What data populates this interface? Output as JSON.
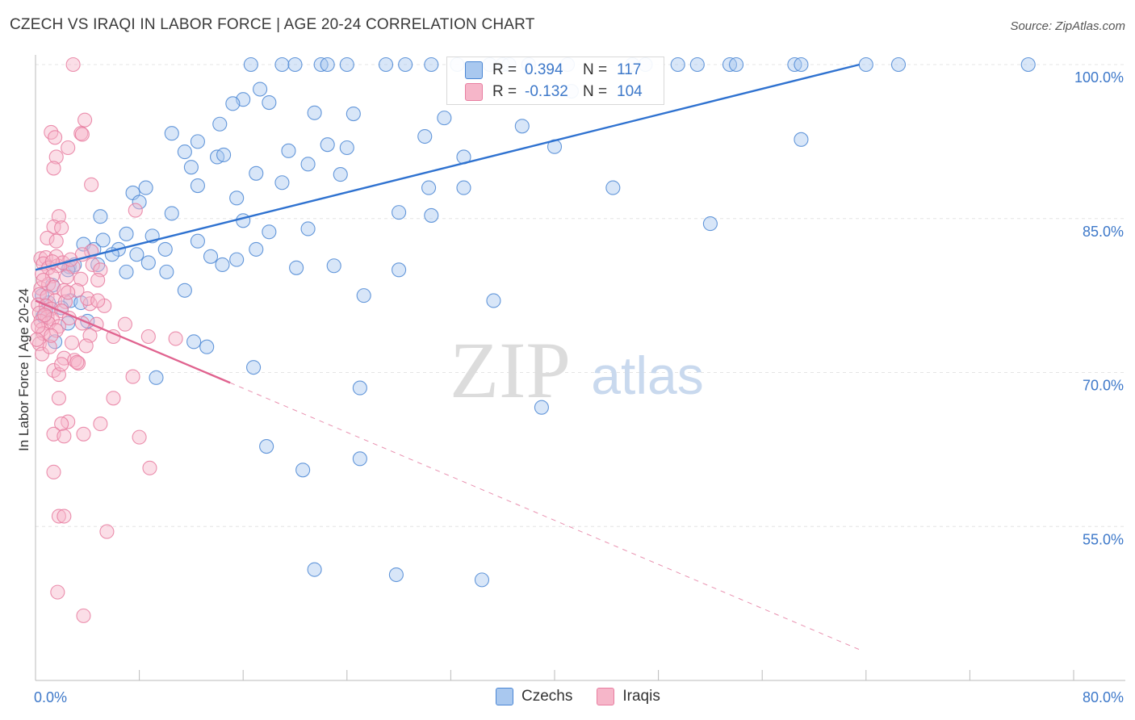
{
  "title": "CZECH VS IRAQI IN LABOR FORCE | AGE 20-24 CORRELATION CHART",
  "source": "Source: ZipAtlas.com",
  "watermark": {
    "zip": "ZIP",
    "atlas": "atlas"
  },
  "legend": {
    "r_label": "R =",
    "n_label": "N =",
    "series": [
      {
        "name": "Czechs",
        "r": "0.394",
        "n": "117",
        "fill": "#a9c8ef",
        "stroke": "#4a86d4",
        "line": "#2f72d0"
      },
      {
        "name": "Iraqis",
        "r": "-0.132",
        "n": "104",
        "fill": "#f6b6c9",
        "stroke": "#e87da0",
        "line": "#e0638f"
      }
    ]
  },
  "chart_data": {
    "type": "scatter",
    "xlabel": "",
    "ylabel": "In Labor Force | Age 20-24",
    "xlim": [
      0,
      80
    ],
    "ylim": [
      40,
      100
    ],
    "x_tick_labels": [
      {
        "value": 0,
        "label": "0.0%"
      },
      {
        "value": 80,
        "label": "80.0%"
      }
    ],
    "y_tick_labels": [
      {
        "value": 100,
        "label": "100.0%"
      },
      {
        "value": 85,
        "label": "85.0%"
      },
      {
        "value": 70,
        "label": "70.0%"
      },
      {
        "value": 55,
        "label": "55.0%"
      }
    ],
    "grid": true,
    "series": [
      {
        "name": "Czechs",
        "trend": {
          "x": [
            0,
            63.5
          ],
          "y": [
            80,
            100
          ],
          "dashed_after": null
        },
        "points": [
          [
            16.6,
            100
          ],
          [
            19.0,
            100
          ],
          [
            20.0,
            100
          ],
          [
            22.0,
            100
          ],
          [
            22.5,
            100
          ],
          [
            24.0,
            100
          ],
          [
            27.0,
            100
          ],
          [
            28.5,
            100
          ],
          [
            30.5,
            100
          ],
          [
            32.5,
            100
          ],
          [
            35.0,
            100
          ],
          [
            36.0,
            100
          ],
          [
            36.5,
            100
          ],
          [
            38.0,
            100
          ],
          [
            41.0,
            100
          ],
          [
            46.0,
            100
          ],
          [
            47.0,
            100
          ],
          [
            49.5,
            100
          ],
          [
            51.0,
            100
          ],
          [
            53.5,
            100
          ],
          [
            54.0,
            100
          ],
          [
            58.5,
            100
          ],
          [
            59.0,
            100
          ],
          [
            64.0,
            100
          ],
          [
            66.5,
            100
          ],
          [
            76.5,
            100
          ],
          [
            17.3,
            97.6
          ],
          [
            16.0,
            96.6
          ],
          [
            15.2,
            96.2
          ],
          [
            18.0,
            96.3
          ],
          [
            14.2,
            94.2
          ],
          [
            21.5,
            95.3
          ],
          [
            24.5,
            95.2
          ],
          [
            31.5,
            94.8
          ],
          [
            10.5,
            93.3
          ],
          [
            12.5,
            92.5
          ],
          [
            14.0,
            91.0
          ],
          [
            19.5,
            91.6
          ],
          [
            24.0,
            91.9
          ],
          [
            17.0,
            89.4
          ],
          [
            37.5,
            94.0
          ],
          [
            30.0,
            93.0
          ],
          [
            22.5,
            92.2
          ],
          [
            11.5,
            91.5
          ],
          [
            12.0,
            90.0
          ],
          [
            21.0,
            90.3
          ],
          [
            14.5,
            91.2
          ],
          [
            40.0,
            92.0
          ],
          [
            33.0,
            91.0
          ],
          [
            41.3,
            97.4
          ],
          [
            59.0,
            92.7
          ],
          [
            8.5,
            88.0
          ],
          [
            7.5,
            87.5
          ],
          [
            8.0,
            86.6
          ],
          [
            12.5,
            88.2
          ],
          [
            15.5,
            87.0
          ],
          [
            10.5,
            85.5
          ],
          [
            23.5,
            89.3
          ],
          [
            28.0,
            85.6
          ],
          [
            30.5,
            85.3
          ],
          [
            33.0,
            88.0
          ],
          [
            52.0,
            84.5
          ],
          [
            5.0,
            85.2
          ],
          [
            7.0,
            83.5
          ],
          [
            9.0,
            83.3
          ],
          [
            10.0,
            82.0
          ],
          [
            12.5,
            82.8
          ],
          [
            16.0,
            84.8
          ],
          [
            18.0,
            83.7
          ],
          [
            21.0,
            84.0
          ],
          [
            3.7,
            82.5
          ],
          [
            4.5,
            82.0
          ],
          [
            5.2,
            82.9
          ],
          [
            6.4,
            82.0
          ],
          [
            5.9,
            81.5
          ],
          [
            7.8,
            81.5
          ],
          [
            8.7,
            80.7
          ],
          [
            13.5,
            81.3
          ],
          [
            15.5,
            81.0
          ],
          [
            2.6,
            80.3
          ],
          [
            3.0,
            80.5
          ],
          [
            4.8,
            80.5
          ],
          [
            7.0,
            79.8
          ],
          [
            10.1,
            79.8
          ],
          [
            14.4,
            80.5
          ],
          [
            17.0,
            82.0
          ],
          [
            20.1,
            80.2
          ],
          [
            23.0,
            80.4
          ],
          [
            28.0,
            80.0
          ],
          [
            35.3,
            77.0
          ],
          [
            25.3,
            77.5
          ],
          [
            2.5,
            80.0
          ],
          [
            1.3,
            78.5
          ],
          [
            2.7,
            77.0
          ],
          [
            1.0,
            76.8
          ],
          [
            11.5,
            78.0
          ],
          [
            2.5,
            74.8
          ],
          [
            13.2,
            72.5
          ],
          [
            1.5,
            73.0
          ],
          [
            9.3,
            69.5
          ],
          [
            16.8,
            70.5
          ],
          [
            25.0,
            68.5
          ],
          [
            39.0,
            66.6
          ],
          [
            0.5,
            77.5
          ],
          [
            2.0,
            76.3
          ],
          [
            0.8,
            76.0
          ],
          [
            17.8,
            62.8
          ],
          [
            25.0,
            61.6
          ],
          [
            20.6,
            60.5
          ],
          [
            21.5,
            50.8
          ],
          [
            27.8,
            50.3
          ],
          [
            34.4,
            49.8
          ],
          [
            0.6,
            75.5
          ],
          [
            12.2,
            73.0
          ],
          [
            4.0,
            75.0
          ],
          [
            3.5,
            76.8
          ],
          [
            30.3,
            88.0
          ],
          [
            19.0,
            88.5
          ],
          [
            44.5,
            88.0
          ]
        ]
      },
      {
        "name": "Iraqis",
        "trend": {
          "x": [
            0,
            15
          ],
          "y": [
            77,
            69
          ],
          "dashed_to": [
            63.5,
            43.0
          ]
        },
        "points": [
          [
            2.9,
            100
          ],
          [
            3.8,
            94.6
          ],
          [
            1.2,
            93.4
          ],
          [
            1.5,
            92.9
          ],
          [
            3.5,
            93.3
          ],
          [
            3.6,
            93.2
          ],
          [
            2.5,
            91.9
          ],
          [
            1.6,
            91.0
          ],
          [
            1.4,
            89.9
          ],
          [
            4.3,
            88.3
          ],
          [
            7.7,
            85.8
          ],
          [
            1.8,
            85.2
          ],
          [
            1.4,
            84.2
          ],
          [
            2.0,
            84.1
          ],
          [
            0.9,
            83.1
          ],
          [
            1.6,
            82.8
          ],
          [
            4.3,
            81.8
          ],
          [
            0.4,
            81.1
          ],
          [
            0.8,
            81.2
          ],
          [
            1.6,
            81.3
          ],
          [
            3.6,
            81.5
          ],
          [
            0.6,
            80.6
          ],
          [
            1.0,
            80.2
          ],
          [
            1.7,
            80.4
          ],
          [
            2.1,
            80.7
          ],
          [
            2.9,
            80.3
          ],
          [
            4.4,
            80.5
          ],
          [
            5.0,
            80.0
          ],
          [
            0.5,
            79.6
          ],
          [
            1.3,
            79.4
          ],
          [
            2.4,
            79.3
          ],
          [
            3.5,
            79.1
          ],
          [
            4.8,
            79.0
          ],
          [
            0.4,
            78.2
          ],
          [
            1.0,
            78.6
          ],
          [
            1.4,
            78.3
          ],
          [
            2.2,
            78.0
          ],
          [
            3.2,
            78.0
          ],
          [
            0.3,
            77.6
          ],
          [
            0.9,
            77.4
          ],
          [
            1.5,
            77.0
          ],
          [
            2.3,
            76.9
          ],
          [
            0.2,
            76.6
          ],
          [
            0.8,
            76.5
          ],
          [
            1.2,
            76.2
          ],
          [
            2.0,
            76.0
          ],
          [
            4.2,
            76.7
          ],
          [
            5.3,
            76.5
          ],
          [
            0.3,
            75.8
          ],
          [
            0.9,
            75.4
          ],
          [
            1.3,
            75.2
          ],
          [
            2.6,
            75.3
          ],
          [
            0.4,
            75.0
          ],
          [
            1.0,
            74.8
          ],
          [
            1.8,
            74.5
          ],
          [
            3.6,
            74.8
          ],
          [
            4.7,
            74.7
          ],
          [
            6.9,
            74.7
          ],
          [
            0.5,
            74.2
          ],
          [
            0.6,
            73.8
          ],
          [
            1.6,
            74.1
          ],
          [
            4.2,
            73.6
          ],
          [
            6.0,
            73.5
          ],
          [
            8.7,
            73.5
          ],
          [
            10.8,
            73.3
          ],
          [
            0.3,
            72.8
          ],
          [
            2.8,
            72.9
          ],
          [
            0.1,
            73.2
          ],
          [
            2.2,
            71.4
          ],
          [
            3.0,
            71.2
          ],
          [
            3.3,
            70.9
          ],
          [
            3.2,
            71.0
          ],
          [
            1.4,
            70.2
          ],
          [
            1.8,
            69.8
          ],
          [
            7.5,
            69.6
          ],
          [
            1.8,
            67.5
          ],
          [
            6.0,
            67.5
          ],
          [
            2.5,
            65.2
          ],
          [
            2.0,
            65.0
          ],
          [
            5.0,
            65.0
          ],
          [
            3.7,
            64.0
          ],
          [
            1.4,
            64.0
          ],
          [
            2.2,
            63.8
          ],
          [
            8.0,
            63.7
          ],
          [
            1.4,
            60.3
          ],
          [
            8.8,
            60.7
          ],
          [
            1.8,
            56.0
          ],
          [
            2.2,
            56.0
          ],
          [
            5.5,
            54.5
          ],
          [
            1.7,
            48.6
          ],
          [
            3.7,
            46.3
          ],
          [
            0.5,
            71.8
          ],
          [
            1.1,
            72.5
          ],
          [
            2.5,
            77.8
          ],
          [
            4.0,
            77.2
          ],
          [
            0.7,
            75.6
          ],
          [
            0.2,
            74.5
          ],
          [
            1.2,
            73.6
          ],
          [
            2.0,
            70.8
          ],
          [
            3.9,
            72.6
          ],
          [
            4.8,
            77.0
          ],
          [
            0.6,
            79.0
          ],
          [
            1.3,
            80.8
          ],
          [
            2.7,
            81.0
          ]
        ]
      }
    ]
  }
}
